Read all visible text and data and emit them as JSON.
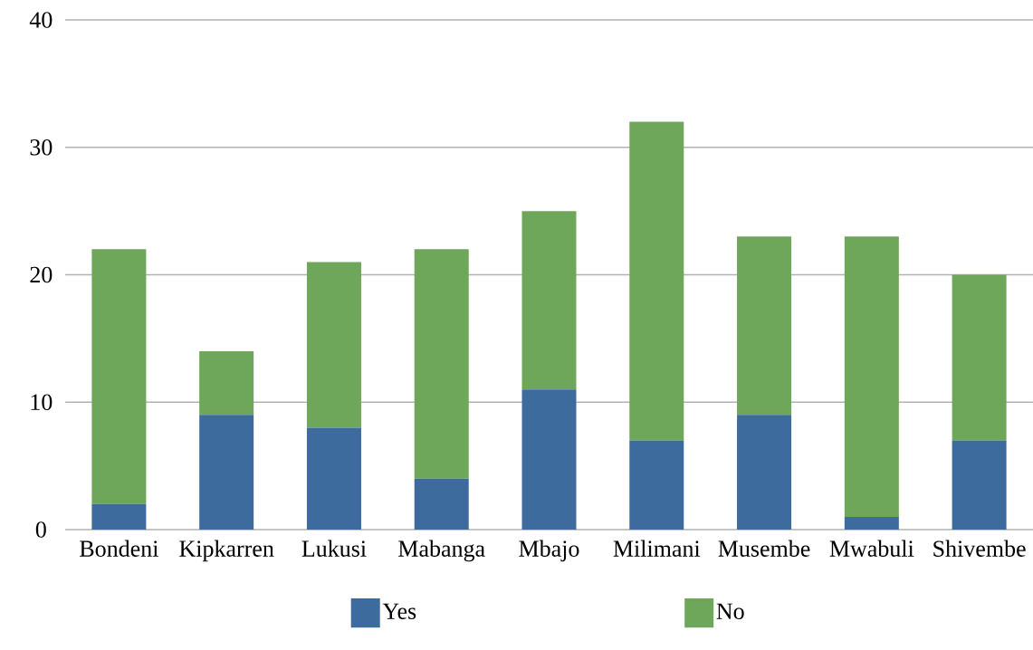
{
  "chart_data": {
    "type": "bar",
    "stacked": true,
    "categories": [
      "Bondeni",
      "Kipkarren",
      "Lukusi",
      "Mabanga",
      "Mbajo",
      "Milimani",
      "Musembe",
      "Mwabuli",
      "Shivembe"
    ],
    "series": [
      {
        "name": "Yes",
        "color": "#3d6b9e",
        "values": [
          2,
          9,
          8,
          4,
          11,
          7,
          9,
          1,
          7
        ]
      },
      {
        "name": "No",
        "color": "#6ea65a",
        "values": [
          20,
          5,
          13,
          18,
          14,
          25,
          14,
          22,
          13
        ]
      }
    ],
    "ylim": [
      0,
      40
    ],
    "yticks": [
      0,
      10,
      20,
      30,
      40
    ],
    "grid": "y",
    "legend": "bottom"
  }
}
